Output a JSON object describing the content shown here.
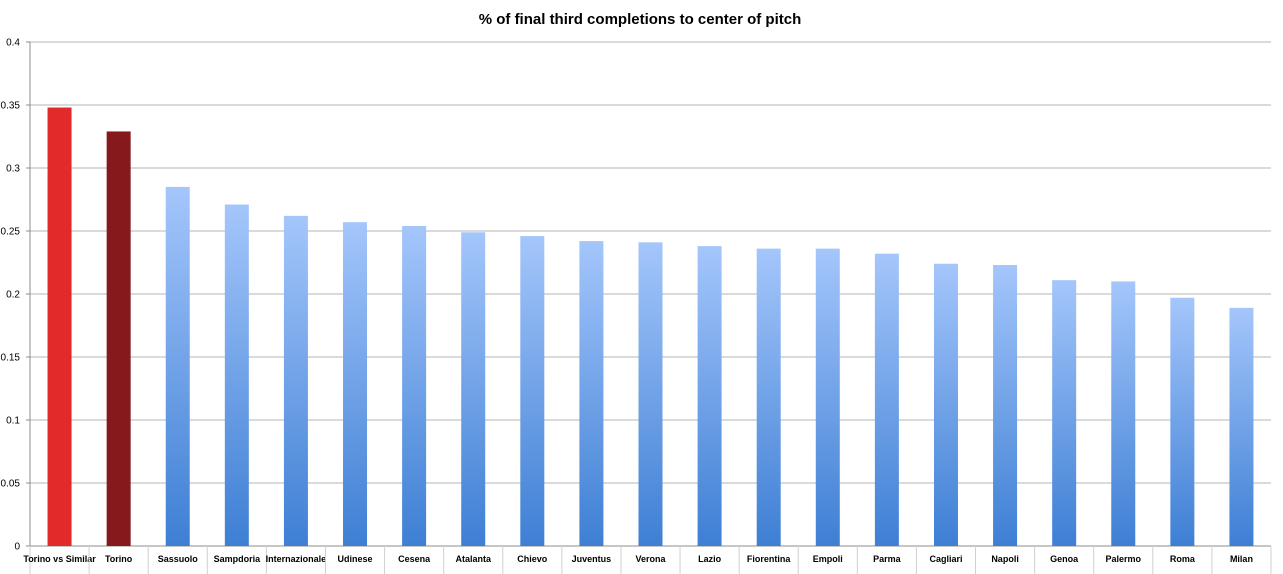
{
  "chart_data": {
    "type": "bar",
    "title": "% of final third completions to center of pitch",
    "xlabel": "",
    "ylabel": "",
    "ylim": [
      0,
      0.4
    ],
    "yticks": [
      "0",
      "0.05",
      "0.1",
      "0.15",
      "0.2",
      "0.25",
      "0.3",
      "0.35",
      "0.4"
    ],
    "grid": true,
    "legend": "none",
    "categories": [
      "Torino vs Similar",
      "Torino",
      "Sassuolo",
      "Sampdoria",
      "Internazionale",
      "Udinese",
      "Cesena",
      "Atalanta",
      "Chievo",
      "Juventus",
      "Verona",
      "Lazio",
      "Fiorentina",
      "Empoli",
      "Parma",
      "Cagliari",
      "Napoli",
      "Genoa",
      "Palermo",
      "Roma",
      "Milan"
    ],
    "values": [
      0.348,
      0.329,
      0.285,
      0.271,
      0.262,
      0.257,
      0.254,
      0.249,
      0.246,
      0.242,
      0.241,
      0.238,
      0.236,
      0.236,
      0.232,
      0.224,
      0.223,
      0.211,
      0.21,
      0.197,
      0.189
    ],
    "colors": {
      "highlight_similar": "#e32a2a",
      "highlight_team": "#86191b",
      "gradient_top": "#a4c6fb",
      "gradient_bottom": "#3e7fd4",
      "grid": "#b4b4b4",
      "axis": "#8c8c8c"
    },
    "bar_color_index": [
      "highlight_similar",
      "highlight_team",
      "gradient",
      "gradient",
      "gradient",
      "gradient",
      "gradient",
      "gradient",
      "gradient",
      "gradient",
      "gradient",
      "gradient",
      "gradient",
      "gradient",
      "gradient",
      "gradient",
      "gradient",
      "gradient",
      "gradient",
      "gradient",
      "gradient"
    ]
  }
}
